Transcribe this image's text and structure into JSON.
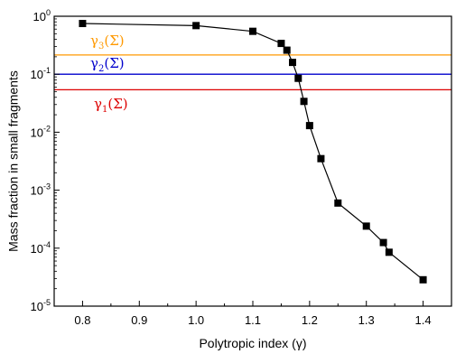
{
  "chart_data": {
    "type": "scatter",
    "xlabel": "Polytropic index (γ)",
    "ylabel": "Mass fraction in small fragments",
    "xlim": [
      0.75,
      1.45
    ],
    "ylim": [
      1e-05,
      1
    ],
    "yscale": "log",
    "x_ticks": [
      0.8,
      0.9,
      1.0,
      1.1,
      1.2,
      1.3,
      1.4
    ],
    "x_tick_labels": [
      "0.8",
      "0.9",
      "1.0",
      "1.1",
      "1.2",
      "1.3",
      "1.4"
    ],
    "y_ticks": [
      1e-05,
      0.0001,
      0.001,
      0.01,
      0.1,
      1
    ],
    "y_tick_labels": [
      {
        "base": "10",
        "exp": "-5"
      },
      {
        "base": "10",
        "exp": "-4"
      },
      {
        "base": "10",
        "exp": "-3"
      },
      {
        "base": "10",
        "exp": "-2"
      },
      {
        "base": "10",
        "exp": "-1"
      },
      {
        "base": "10",
        "exp": "0"
      }
    ],
    "grid": false,
    "series": [
      {
        "color": "#000000",
        "marker": "square",
        "x": [
          0.8,
          1.0,
          1.1,
          1.15,
          1.16,
          1.17,
          1.18,
          1.19,
          1.2,
          1.22,
          1.25,
          1.3,
          1.33,
          1.34,
          1.4
        ],
        "y": [
          0.75,
          0.69,
          0.55,
          0.34,
          0.26,
          0.16,
          0.085,
          0.034,
          0.013,
          0.0035,
          0.0006,
          0.00024,
          0.000125,
          8.5e-05,
          2.85e-05
        ]
      }
    ],
    "reference_lines": [
      {
        "y": 0.215,
        "color": "#ff9900",
        "label": {
          "main": "γ",
          "sub": "3",
          "tail": "(Σ)"
        }
      },
      {
        "y": 0.1,
        "color": "#0000cc",
        "label": {
          "main": "γ",
          "sub": "2",
          "tail": "(Σ)"
        }
      },
      {
        "y": 0.054,
        "color": "#dd0000",
        "label": {
          "main": "γ",
          "sub": "1",
          "tail": "(Σ)"
        }
      }
    ]
  }
}
